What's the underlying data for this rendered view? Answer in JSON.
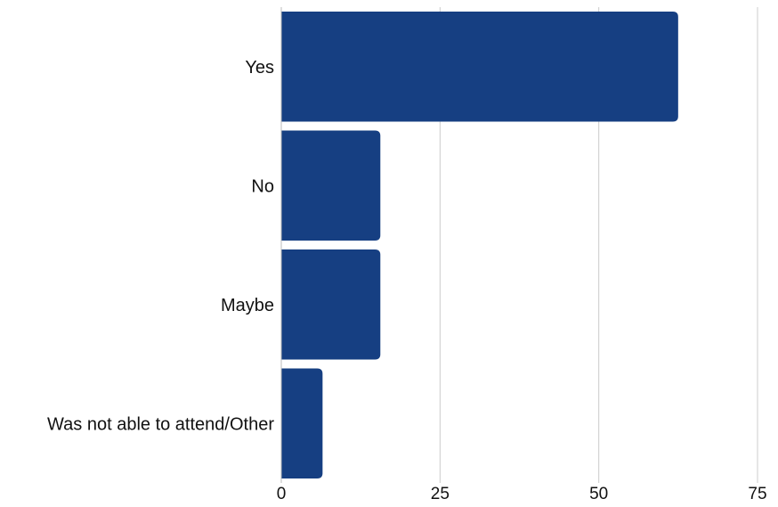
{
  "chart_data": {
    "type": "bar",
    "orientation": "horizontal",
    "categories": [
      "Yes",
      "No",
      "Maybe",
      "Was not able to attend/Other"
    ],
    "values": [
      62.5,
      15.6,
      15.6,
      6.5
    ],
    "xlim": [
      0,
      75
    ],
    "xticks": [
      "0",
      "25",
      "50",
      "75"
    ],
    "grid": true,
    "legend": "none",
    "bar_color": "#163f82",
    "grid_color": "#cccccc",
    "axis_color": "#bbbbbb"
  }
}
